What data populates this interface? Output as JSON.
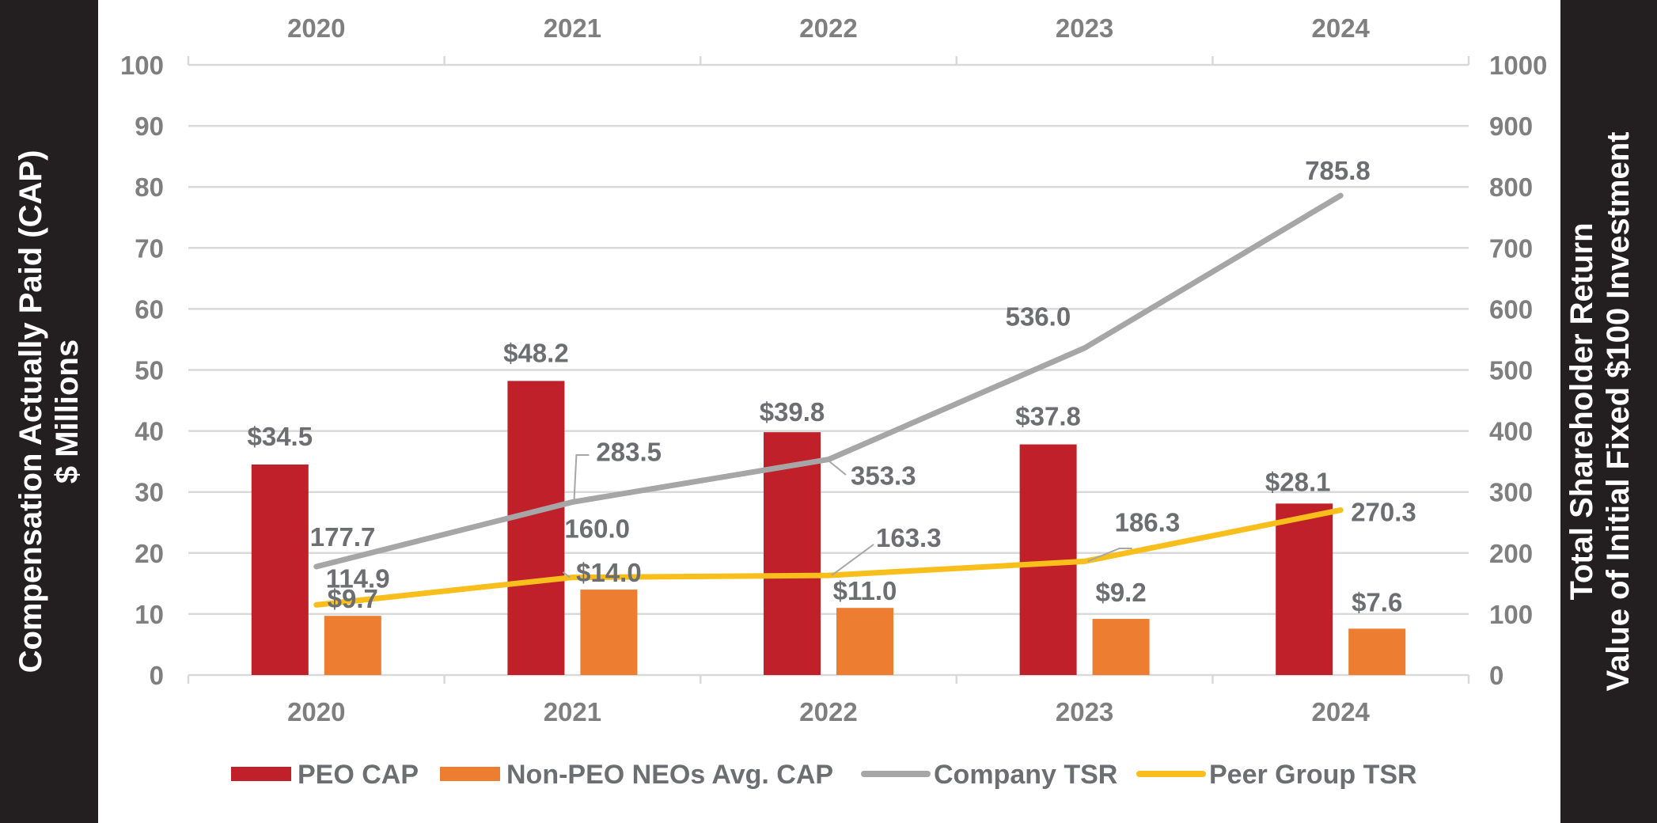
{
  "chart_data": {
    "type": "bar+line",
    "categories": [
      "2020",
      "2021",
      "2022",
      "2023",
      "2024"
    ],
    "left_axis": {
      "title_line1": "Compensation Actually Paid (CAP)",
      "title_line2": "$ Millions",
      "ylim": [
        0,
        100
      ],
      "ticks": [
        0,
        10,
        20,
        30,
        40,
        50,
        60,
        70,
        80,
        90,
        100
      ]
    },
    "right_axis": {
      "title_line1": "Total Shareholder Return",
      "title_line2": "Value of Initial Fixed $100 Investment",
      "ylim": [
        0,
        1000
      ],
      "ticks": [
        0,
        100,
        200,
        300,
        400,
        500,
        600,
        700,
        800,
        900,
        1000
      ]
    },
    "bar_series": [
      {
        "name": "PEO CAP",
        "color": "#c0202a",
        "axis": "left",
        "values": [
          34.5,
          48.2,
          39.8,
          37.8,
          28.1
        ],
        "labels": [
          "$34.5",
          "$48.2",
          "$39.8",
          "$37.8",
          "$28.1"
        ]
      },
      {
        "name": "Non-PEO NEOs Avg. CAP",
        "color": "#ed7d31",
        "axis": "left",
        "values": [
          9.7,
          14.0,
          11.0,
          9.2,
          7.6
        ],
        "labels": [
          "$9.7",
          "$14.0",
          "$11.0",
          "$9.2",
          "$7.6"
        ]
      }
    ],
    "line_series": [
      {
        "name": "Company TSR",
        "color": "#a6a6a6",
        "axis": "right",
        "values": [
          177.7,
          283.5,
          353.3,
          536.0,
          785.8
        ],
        "labels": [
          "177.7",
          "283.5",
          "353.3",
          "536.0",
          "785.8"
        ]
      },
      {
        "name": "Peer Group TSR",
        "color": "#f8bf1c",
        "axis": "right",
        "values": [
          114.9,
          160.0,
          163.3,
          186.3,
          270.3
        ],
        "labels": [
          "114.9",
          "160.0",
          "163.3",
          "186.3",
          "270.3"
        ]
      }
    ],
    "legend_position": "bottom",
    "grid": true
  }
}
